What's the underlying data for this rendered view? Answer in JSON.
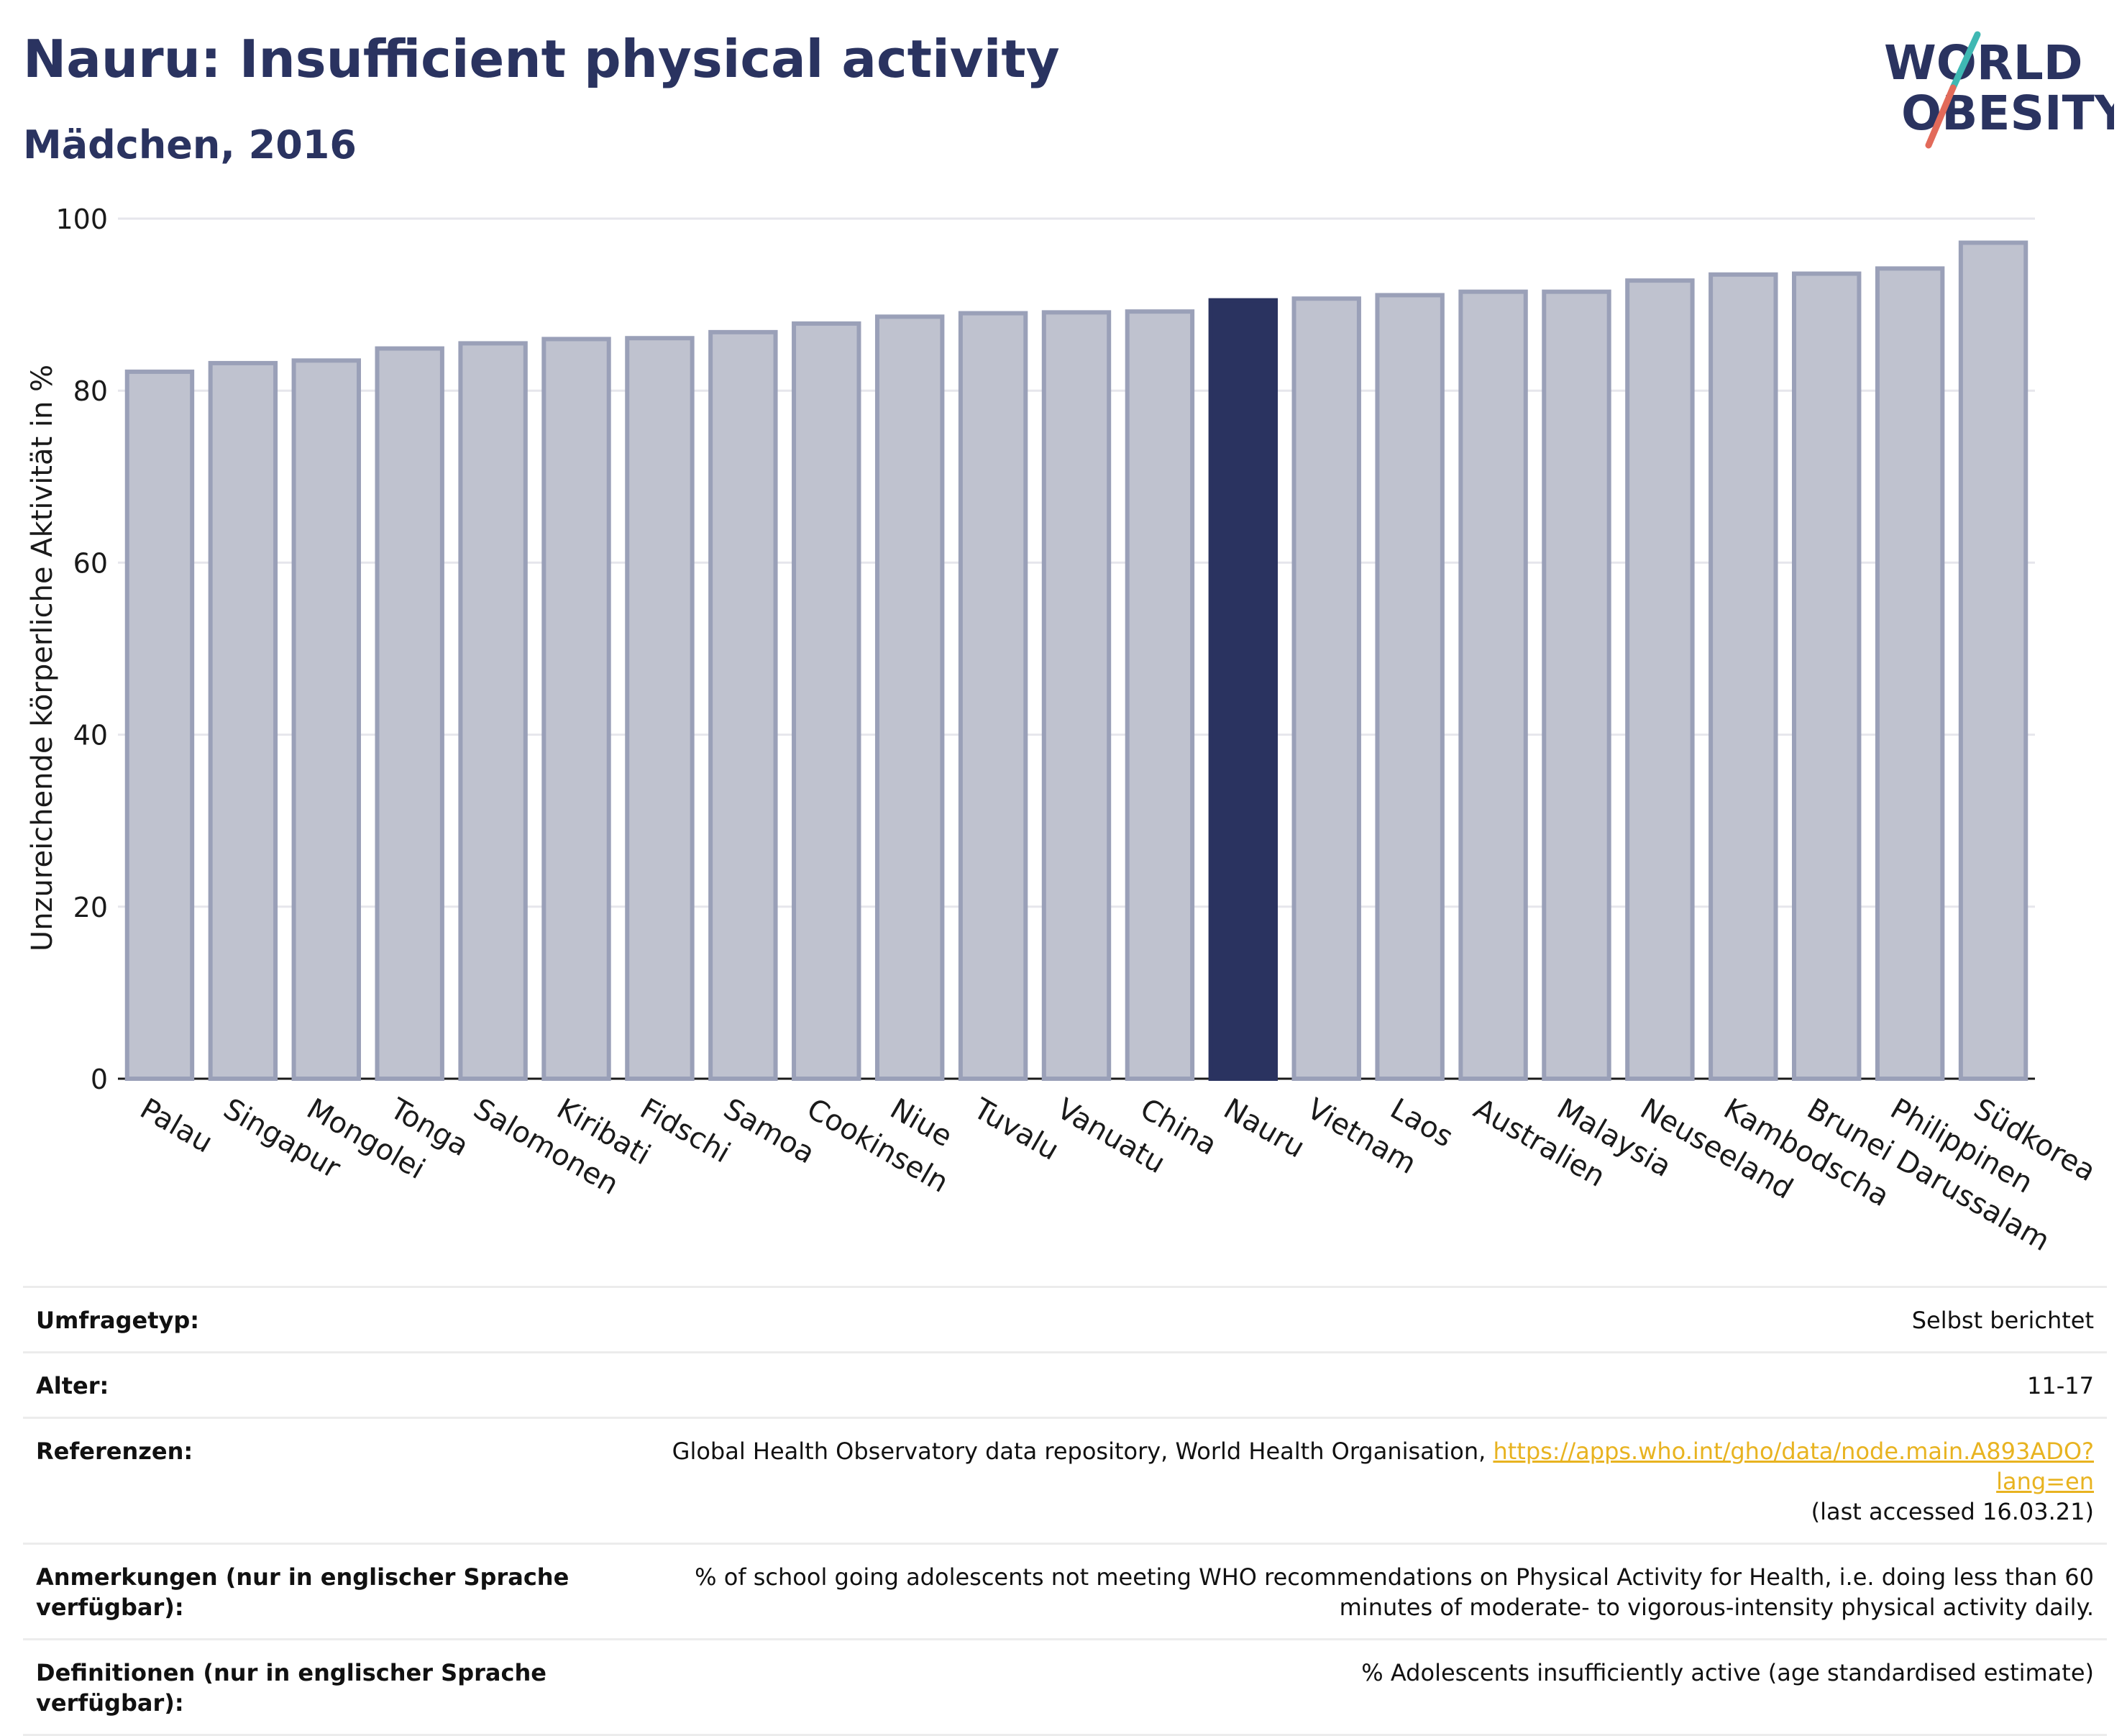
{
  "header": {
    "title": "Nauru: Insufficient physical activity",
    "subtitle": "Mädchen, 2016"
  },
  "logo": {
    "line1": "WORLD",
    "line2": "OBESITY",
    "colors": {
      "text": "#2a3360",
      "slash_top": "#3fb8b3",
      "slash_bottom": "#e26a5a"
    }
  },
  "colors": {
    "bar": "#bfc2cf",
    "bar_stroke": "#9aa0b8",
    "highlight": "#2a3360",
    "grid": "#e6e6ec",
    "axis": "#1a1a1a"
  },
  "chart_data": {
    "type": "bar",
    "title": "Nauru: Insufficient physical activity",
    "subtitle": "Mädchen, 2016",
    "xlabel": "",
    "ylabel": "Unzureichende körperliche Aktivität in %",
    "ylim": [
      0,
      100
    ],
    "yticks": [
      0,
      20,
      40,
      60,
      80,
      100
    ],
    "grid": true,
    "highlight": "Nauru",
    "categories": [
      "Palau",
      "Singapur",
      "Mongolei",
      "Tonga",
      "Salomonen",
      "Kiribati",
      "Fidschi",
      "Samoa",
      "Cookinseln",
      "Niue",
      "Tuvalu",
      "Vanuatu",
      "China",
      "Nauru",
      "Vietnam",
      "Laos",
      "Australien",
      "Malaysia",
      "Neuseeland",
      "Kambodscha",
      "Brunei Darussalam",
      "Philippinen",
      "Südkorea"
    ],
    "values": [
      82.2,
      83.2,
      83.5,
      84.9,
      85.5,
      86.0,
      86.1,
      86.8,
      87.8,
      88.6,
      89.0,
      89.1,
      89.2,
      90.5,
      90.7,
      91.1,
      91.5,
      91.5,
      92.8,
      93.5,
      93.6,
      94.2,
      97.2
    ]
  },
  "info": {
    "rows": [
      {
        "label": "Umfragetyp:",
        "value": "Selbst berichtet"
      },
      {
        "label": "Alter:",
        "value": "11-17"
      },
      {
        "label": "Referenzen:",
        "value": "Global Health Observatory data repository, World Health Organisation, ",
        "link": "https://apps.who.int/gho/data/node.main.A893ADO?lang=en",
        "value2": "(last accessed 16.03.21)"
      },
      {
        "label": "Anmerkungen (nur in englischer Sprache verfügbar):",
        "value": "% of school going adolescents not meeting WHO recommendations on Physical Activity for Health, i.e. doing less than 60 minutes of moderate- to vigorous-intensity physical activity daily."
      },
      {
        "label": "Definitionen (nur in englischer Sprache verfügbar):",
        "value": "% Adolescents insufficiently active (age standardised estimate)"
      }
    ]
  }
}
